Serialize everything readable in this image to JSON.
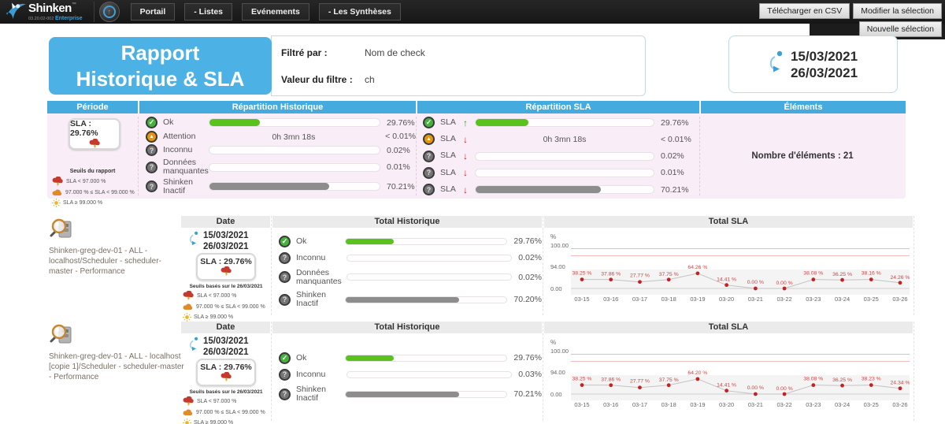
{
  "navbar": {
    "brand": "Shinken",
    "brand_tm": "™",
    "brand_sub": "03.20.02-002",
    "brand_edition": "Enterprise",
    "menu": [
      "Portail",
      "- Listes",
      "Evénements",
      "- Les Synthèses"
    ],
    "buttons": {
      "csv": "Télécharger en CSV",
      "modify": "Modifier la sélection",
      "new": "Nouvelle sélection"
    }
  },
  "header": {
    "title_line1": "Rapport",
    "title_line2": "Historique & SLA",
    "filtered_by_label": "Filtré par :",
    "filtered_by_value": "Nom de check",
    "filter_value_label": "Valeur du filtre :",
    "filter_value": "ch",
    "date_start": "15/03/2021",
    "date_end": "26/03/2021"
  },
  "summary": {
    "col_periode": "Période",
    "col_historique": "Répartition Historique",
    "col_sla": "Répartition SLA",
    "col_elements": "Éléments",
    "sla_badge": "SLA : 29.76%",
    "badge_weather": "storm",
    "thresholds_title": "Seuils du rapport",
    "thresholds": [
      {
        "icon": "storm",
        "label": "SLA < 97.000 %"
      },
      {
        "icon": "cloud",
        "label": "97.000 % ≤ SLA < 99.000 %"
      },
      {
        "icon": "sun",
        "label": "SLA ≥ 99.000 %"
      }
    ],
    "historique_rows": [
      {
        "icon": "ok",
        "label": "Ok",
        "pct": 29.76,
        "color": "green",
        "value": "29.76%"
      },
      {
        "icon": "warn",
        "label": "Attention",
        "pct": 0,
        "overlay": "0h 3mn 18s",
        "value": "< 0.01%"
      },
      {
        "icon": "unknown",
        "label": "Inconnu",
        "pct": 0,
        "value": "0.02%"
      },
      {
        "icon": "unknown",
        "label": "Données manquantes",
        "pct": 0,
        "value": "0.01%"
      },
      {
        "icon": "unknown",
        "label": "Shinken Inactif",
        "pct": 70.21,
        "color": "gray",
        "value": "70.21%"
      }
    ],
    "sla_rows": [
      {
        "icon": "ok",
        "label": "SLA",
        "trend": "up",
        "pct": 29.76,
        "color": "green",
        "value": "29.76%"
      },
      {
        "icon": "warn",
        "label": "SLA",
        "trend": "down",
        "pct": 0,
        "overlay": "0h 3mn 18s",
        "value": "< 0.01%"
      },
      {
        "icon": "unknown",
        "label": "SLA",
        "trend": "down",
        "pct": 0,
        "value": "0.02%"
      },
      {
        "icon": "unknown",
        "label": "SLA",
        "trend": "down",
        "pct": 0,
        "value": "0.01%"
      },
      {
        "icon": "unknown",
        "label": "SLA",
        "trend": "down",
        "pct": 70.21,
        "color": "gray",
        "value": "70.21%"
      }
    ],
    "elements_count": "Nombre d'éléments : 21"
  },
  "details": [
    {
      "name": "Shinken-greg-dev-01 - ALL - localhost/Scheduler - scheduler-master - Performance",
      "date_header": "Date",
      "date_start": "15/03/2021",
      "date_end": "26/03/2021",
      "sla_badge": "SLA : 29.76%",
      "badge_weather": "storm",
      "seuils_note": "Seuils basés sur le 26/03/2021",
      "thresholds": [
        {
          "icon": "storm",
          "label": "SLA < 97.000 %"
        },
        {
          "icon": "cloud",
          "label": "97.000 % ≤ SLA < 99.000 %"
        },
        {
          "icon": "sun",
          "label": "SLA ≥ 99.000 %"
        }
      ],
      "historique_header": "Total Historique",
      "historique_rows": [
        {
          "icon": "ok",
          "label": "Ok",
          "pct": 29.76,
          "color": "green",
          "value": "29.76%"
        },
        {
          "icon": "unknown",
          "label": "Inconnu",
          "pct": 0,
          "value": "0.02%"
        },
        {
          "icon": "unknown",
          "label": "Données manquantes",
          "pct": 0,
          "value": "0.02%"
        },
        {
          "icon": "unknown",
          "label": "Shinken Inactif",
          "pct": 70.2,
          "color": "gray",
          "value": "70.20%"
        }
      ],
      "sla_header": "Total SLA",
      "chart_index": 0
    },
    {
      "name": "Shinken-greg-dev-01 - ALL - localhost [copie 1]/Scheduler - scheduler-master - Performance",
      "date_header": "Date",
      "date_start": "15/03/2021",
      "date_end": "26/03/2021",
      "sla_badge": "SLA : 29.76%",
      "badge_weather": "storm",
      "seuils_note": "Seuils basés sur le 26/03/2021",
      "thresholds": [
        {
          "icon": "storm",
          "label": "SLA < 97.000 %"
        },
        {
          "icon": "cloud",
          "label": "97.000 % ≤ SLA < 99.000 %"
        },
        {
          "icon": "sun",
          "label": "SLA ≥ 99.000 %"
        }
      ],
      "historique_header": "Total Historique",
      "historique_rows": [
        {
          "icon": "ok",
          "label": "Ok",
          "pct": 29.76,
          "color": "green",
          "value": "29.76%"
        },
        {
          "icon": "unknown",
          "label": "Inconnu",
          "pct": 0,
          "value": "0.03%"
        },
        {
          "icon": "unknown",
          "label": "Shinken Inactif",
          "pct": 70.21,
          "color": "gray",
          "value": "70.21%"
        }
      ],
      "sla_header": "Total SLA",
      "chart_index": 1
    }
  ],
  "chart_data": [
    {
      "type": "line",
      "title": "Total SLA",
      "ylabel": "%",
      "x": [
        "03-15",
        "03-16",
        "03-17",
        "03-18",
        "03-19",
        "03-20",
        "03-21",
        "03-22",
        "03-23",
        "03-24",
        "03-25",
        "03-26"
      ],
      "values": [
        38.25,
        37.86,
        27.77,
        37.75,
        64.26,
        14.41,
        0.0,
        0.0,
        38.08,
        36.25,
        38.16,
        24.26
      ],
      "point_labels": [
        "38.25 %",
        "37.86 %",
        "27.77 %",
        "37.75 %",
        "64.26 %",
        "14.41 %",
        "0.00 %",
        "0.00 %",
        "38.08 %",
        "36.25 %",
        "38.16 %",
        "24.26 %"
      ],
      "yticks": [
        "100.00",
        "94.00",
        "0.00"
      ],
      "ylim": [
        0,
        100
      ],
      "grid": false,
      "legend": "none",
      "thresholds": [
        {
          "value": 99,
          "color": "#e6c493"
        },
        {
          "value": 97,
          "color": "#f2bcbc"
        }
      ],
      "line_color": "#c3c3c3",
      "point_color": "#c42222",
      "label_color": "#d04343"
    },
    {
      "type": "line",
      "title": "Total SLA",
      "ylabel": "%",
      "x": [
        "03-15",
        "03-16",
        "03-17",
        "03-18",
        "03-19",
        "03-20",
        "03-21",
        "03-22",
        "03-23",
        "03-24",
        "03-25",
        "03-26"
      ],
      "values": [
        38.25,
        37.86,
        27.77,
        37.75,
        64.2,
        14.41,
        0.0,
        0.0,
        38.08,
        36.25,
        38.23,
        24.34
      ],
      "point_labels": [
        "38.25 %",
        "37.86 %",
        "27.77 %",
        "37.75 %",
        "64.20 %",
        "14.41 %",
        "0.00 %",
        "0.00 %",
        "38.08 %",
        "36.25 %",
        "38.23 %",
        "24.34 %"
      ],
      "yticks": [
        "100.00",
        "94.00",
        "0.00"
      ],
      "ylim": [
        0,
        100
      ],
      "grid": false,
      "legend": "none",
      "thresholds": [
        {
          "value": 99,
          "color": "#e6c493"
        },
        {
          "value": 97,
          "color": "#f2bcbc"
        }
      ],
      "line_color": "#c3c3c3",
      "point_color": "#c42222",
      "label_color": "#d04343"
    }
  ]
}
